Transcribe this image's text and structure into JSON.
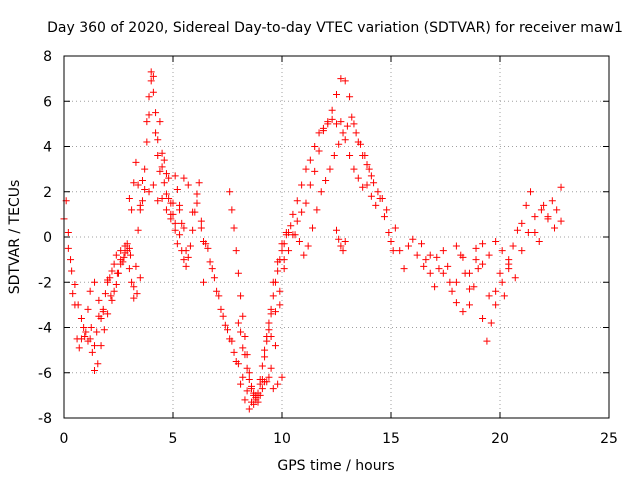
{
  "chart_data": {
    "type": "scatter",
    "title": "Day 360 of 2020, Sidereal Day-to-day VTEC variation (SDTVAR) for receiver maw1",
    "xlabel": "GPS time / hours",
    "ylabel": "SDTVAR / TECUs",
    "xlim": [
      0,
      25
    ],
    "ylim": [
      -8,
      8
    ],
    "xticks": [
      0,
      5,
      10,
      15,
      20,
      25
    ],
    "yticks": [
      -8,
      -6,
      -4,
      -2,
      0,
      2,
      4,
      6,
      8
    ],
    "xtick_labels": [
      "0",
      "5",
      "10",
      "15",
      "20",
      "25"
    ],
    "ytick_labels": [
      "-8",
      "-6",
      "-4",
      "-2",
      "0",
      "2",
      "4",
      "6",
      "8"
    ],
    "grid": true,
    "marker": "+",
    "series": [
      {
        "name": "maw1",
        "color": "#ff0000",
        "tracks": [
          {
            "x": [
              0.0,
              0.1,
              0.2,
              0.3,
              0.4,
              0.5,
              0.6,
              0.7,
              0.8,
              0.9,
              1.0,
              1.1,
              1.2,
              1.3,
              1.4,
              1.5,
              1.6,
              1.7,
              1.8,
              1.9,
              2.0,
              2.1,
              2.2,
              2.3,
              2.4,
              2.5,
              2.6,
              2.7,
              2.8,
              2.9,
              3.0,
              3.1,
              3.2,
              3.3,
              3.4,
              3.5
            ],
            "y": [
              0.8,
              1.6,
              0.2,
              -1.0,
              -2.5,
              -3.0,
              -4.5,
              -4.9,
              -4.5,
              -4.0,
              -4.2,
              -3.2,
              -4.5,
              -5.1,
              -5.9,
              -4.2,
              -3.5,
              -3.6,
              -3.3,
              -2.5,
              -2.0,
              -1.8,
              -2.8,
              -1.2,
              -0.8,
              -1.6,
              -0.6,
              -1.1,
              -0.4,
              -0.3,
              -0.5,
              -2.0,
              -2.7,
              -1.3,
              0.3,
              1.2
            ]
          },
          {
            "x": [
              0.2,
              0.35,
              0.5,
              0.65,
              0.8,
              0.95,
              1.1,
              1.25,
              1.4,
              1.55,
              1.7,
              1.85,
              2.0,
              2.15,
              2.3,
              2.45,
              2.6,
              2.75,
              2.9,
              3.05,
              3.2,
              3.35,
              3.5
            ],
            "y": [
              -0.5,
              -1.5,
              -2.1,
              -3.0,
              -3.6,
              -4.4,
              -4.6,
              -4.0,
              -4.8,
              -5.6,
              -4.8,
              -4.1,
              -3.4,
              -2.6,
              -2.4,
              -1.6,
              -1.2,
              -0.9,
              -0.6,
              -0.8,
              -2.2,
              -2.5,
              -1.8
            ]
          },
          {
            "x": [
              1.2,
              1.4,
              1.6,
              1.8,
              2.0,
              2.2,
              2.4,
              2.6,
              2.8,
              3.0
            ],
            "y": [
              -2.4,
              -2.0,
              -2.8,
              -3.2,
              -1.9,
              -1.5,
              -2.1,
              -1.0,
              -0.7,
              -1.4
            ]
          },
          {
            "x": [
              3.0,
              3.1,
              3.2,
              3.3,
              3.4,
              3.5,
              3.6,
              3.7,
              3.8,
              3.9,
              4.0,
              4.1,
              4.2,
              4.3,
              4.4,
              4.5,
              4.6,
              4.7,
              4.8,
              4.9,
              5.0,
              5.1,
              5.2,
              5.3,
              5.4,
              5.5,
              5.6,
              5.7,
              5.8,
              5.9,
              6.0,
              6.1,
              6.2,
              6.3,
              6.4
            ],
            "y": [
              1.7,
              1.2,
              2.4,
              3.3,
              2.3,
              1.4,
              1.6,
              2.1,
              4.2,
              5.4,
              6.9,
              7.1,
              5.5,
              4.3,
              5.1,
              3.7,
              3.4,
              2.8,
              2.6,
              1.5,
              1.5,
              2.7,
              2.1,
              1.2,
              0.6,
              0.4,
              -0.6,
              -0.9,
              -0.4,
              0.3,
              1.1,
              1.9,
              2.4,
              0.7,
              -2.0
            ]
          },
          {
            "x": [
              3.6,
              3.7,
              3.8,
              3.9,
              4.0,
              4.1,
              4.2,
              4.3,
              4.4,
              4.5,
              4.6,
              4.7,
              4.8,
              4.9,
              5.0,
              5.1,
              5.2,
              5.3,
              5.4,
              5.5,
              5.6
            ],
            "y": [
              2.5,
              3.0,
              5.1,
              6.2,
              7.3,
              6.4,
              4.6,
              3.6,
              2.9,
              3.1,
              2.4,
              1.9,
              1.7,
              0.8,
              1.0,
              0.3,
              -0.3,
              0.1,
              -0.6,
              -1.0,
              -1.3
            ]
          },
          {
            "x": [
              3.9,
              4.1,
              4.3,
              4.5,
              4.7,
              4.9,
              5.1,
              5.3,
              5.5,
              5.7,
              5.9,
              6.1,
              6.3,
              6.5,
              6.7,
              6.9,
              7.1,
              7.3,
              7.5,
              7.7,
              7.9,
              8.1,
              8.3,
              8.5,
              8.7,
              8.9,
              9.1,
              9.3,
              9.5,
              9.7,
              9.9,
              10.1,
              10.3,
              10.5,
              10.7,
              10.9,
              11.1,
              11.3,
              11.5,
              11.7,
              11.9,
              12.1,
              12.3,
              12.5,
              12.7,
              12.9,
              13.1,
              13.3,
              13.5,
              13.7,
              13.9,
              14.1,
              14.3,
              14.5,
              14.7,
              14.9,
              15.1
            ],
            "y": [
              2.0,
              2.3,
              1.6,
              1.7,
              1.2,
              1.0,
              0.6,
              1.4,
              2.6,
              2.3,
              1.1,
              1.5,
              0.4,
              -0.3,
              -1.1,
              -1.8,
              -2.6,
              -3.5,
              -4.1,
              -4.6,
              -5.5,
              -6.5,
              -7.2,
              -7.6,
              -7.4,
              -7.0,
              -6.7,
              -6.4,
              -5.8,
              -4.8,
              -3.0,
              -1.0,
              0.2,
              1.0,
              1.6,
              2.3,
              3.0,
              3.4,
              4.0,
              4.6,
              4.8,
              5.0,
              5.2,
              5.0,
              5.1,
              4.3,
              3.6,
              3.0,
              2.6,
              2.2,
              2.3,
              1.8,
              1.4,
              1.7,
              0.9,
              0.2,
              -0.6
            ]
          },
          {
            "x": [
              6.4,
              6.6,
              6.8,
              7.0,
              7.2,
              7.4,
              7.6,
              7.8,
              8.0,
              8.2,
              8.4,
              8.6,
              8.8,
              9.0,
              9.2,
              9.4,
              9.6,
              9.8,
              10.0
            ],
            "y": [
              -0.2,
              -0.5,
              -1.4,
              -2.4,
              -3.2,
              -3.9,
              -4.5,
              -5.1,
              -5.6,
              -6.2,
              -6.8,
              -7.3,
              -7.0,
              -6.5,
              -6.4,
              -6.2,
              -6.7,
              -6.5,
              -6.2
            ]
          },
          {
            "x": [
              7.6,
              7.7,
              7.8,
              7.9,
              8.0,
              8.1,
              8.2,
              8.3,
              8.4,
              8.5,
              8.6,
              8.7,
              8.8,
              8.9,
              9.0,
              9.1,
              9.2,
              9.3,
              9.4,
              9.5
            ],
            "y": [
              2.0,
              1.2,
              0.4,
              -0.6,
              -1.6,
              -2.6,
              -3.5,
              -4.4,
              -5.2,
              -6.0,
              -6.6,
              -6.9,
              -7.2,
              -7.3,
              -7.0,
              -6.3,
              -5.3,
              -4.6,
              -4.1,
              -3.4
            ]
          },
          {
            "x": [
              8.0,
              8.1,
              8.2,
              8.3,
              8.4,
              8.5,
              8.6,
              8.7,
              8.8,
              8.9,
              9.0,
              9.1,
              9.2,
              9.3,
              9.4,
              9.5,
              9.6,
              9.7,
              9.8,
              9.9,
              10.0,
              10.1,
              10.2
            ],
            "y": [
              -3.8,
              -4.2,
              -4.9,
              -5.2,
              -5.8,
              -6.3,
              -6.7,
              -7.0,
              -7.1,
              -6.9,
              -6.3,
              -5.7,
              -5.0,
              -4.4,
              -3.8,
              -3.2,
              -2.6,
              -2.0,
              -1.5,
              -1.0,
              -0.6,
              -0.3,
              0.1
            ]
          },
          {
            "x": [
              9.5,
              9.7,
              9.9,
              10.1,
              10.3,
              10.5,
              10.7,
              10.9,
              11.1,
              11.3,
              11.5,
              11.7,
              11.9,
              12.1,
              12.3,
              12.5,
              12.7,
              12.9,
              13.1,
              13.3,
              13.5,
              13.7,
              13.9,
              14.1
            ],
            "y": [
              -4.4,
              -3.3,
              -2.4,
              -1.4,
              -0.6,
              0.1,
              0.7,
              1.1,
              1.5,
              2.3,
              2.9,
              3.8,
              4.7,
              5.1,
              5.6,
              6.3,
              7.0,
              6.9,
              6.2,
              5.0,
              4.2,
              3.6,
              3.2,
              2.7
            ]
          },
          {
            "x": [
              9.6,
              9.8,
              10.0,
              10.2,
              10.4,
              10.6,
              10.8,
              11.0,
              11.2,
              11.4,
              11.6,
              11.8,
              12.0,
              12.2,
              12.4,
              12.6,
              12.8,
              13.0,
              13.2,
              13.4,
              13.6,
              13.8,
              14.0,
              14.2,
              14.4,
              14.6,
              14.8
            ],
            "y": [
              -2.0,
              -1.1,
              -0.3,
              0.2,
              0.5,
              0.1,
              -0.2,
              -0.8,
              -0.4,
              0.4,
              1.2,
              2.0,
              2.5,
              3.0,
              3.6,
              4.1,
              4.6,
              4.9,
              5.3,
              4.6,
              4.1,
              3.6,
              3.0,
              2.4,
              2.0,
              1.7,
              1.2
            ]
          },
          {
            "x": [
              12.5,
              12.6,
              12.7,
              12.8,
              12.9
            ],
            "y": [
              0.3,
              -0.1,
              -0.4,
              -0.6,
              -0.2
            ]
          },
          {
            "x": [
              15.0,
              15.2,
              15.4,
              15.6,
              15.8,
              16.0,
              16.2,
              16.4,
              16.6,
              16.8,
              17.0,
              17.2,
              17.4,
              17.6,
              17.8,
              18.0,
              18.2,
              18.4,
              18.6,
              18.8,
              19.0,
              19.2,
              19.4,
              19.6,
              19.8,
              20.0,
              20.2,
              20.4,
              20.6,
              20.8,
              21.0,
              21.2,
              21.4,
              21.6,
              21.8,
              22.0,
              22.2,
              22.4,
              22.6,
              22.8
            ],
            "y": [
              -0.2,
              0.4,
              -0.6,
              -1.4,
              -0.4,
              -0.1,
              -0.8,
              -0.3,
              -1.0,
              -1.6,
              -2.2,
              -1.4,
              -0.6,
              -1.3,
              -2.4,
              -2.0,
              -0.8,
              -1.6,
              -3.0,
              -2.2,
              -1.4,
              -3.6,
              -4.6,
              -3.8,
              -2.4,
              -1.6,
              -2.6,
              -1.2,
              -0.4,
              0.3,
              0.6,
              1.4,
              2.0,
              0.2,
              -0.2,
              1.4,
              0.9,
              1.6,
              1.2,
              2.2
            ]
          },
          {
            "x": [
              16.5,
              16.8,
              17.1,
              17.4,
              17.7,
              18.0,
              18.3,
              18.6,
              18.9,
              19.2,
              19.5,
              19.8,
              20.1,
              20.4,
              20.7,
              21.0,
              21.3,
              21.6,
              21.9,
              22.2,
              22.5,
              22.8
            ],
            "y": [
              -1.3,
              -0.8,
              -0.9,
              -1.6,
              -2.0,
              -2.9,
              -3.3,
              -2.3,
              -1.0,
              -1.2,
              -2.6,
              -3.0,
              -2.0,
              -1.4,
              -1.8,
              -0.6,
              0.2,
              0.9,
              1.2,
              0.8,
              0.4,
              0.7
            ]
          },
          {
            "x": [
              18.0,
              18.3,
              18.6,
              18.9,
              19.2,
              19.5,
              19.8,
              20.1,
              20.4
            ],
            "y": [
              -0.4,
              -0.9,
              -1.6,
              -0.5,
              -0.3,
              -0.8,
              -0.2,
              -0.6,
              -1.0
            ]
          }
        ]
      }
    ]
  }
}
